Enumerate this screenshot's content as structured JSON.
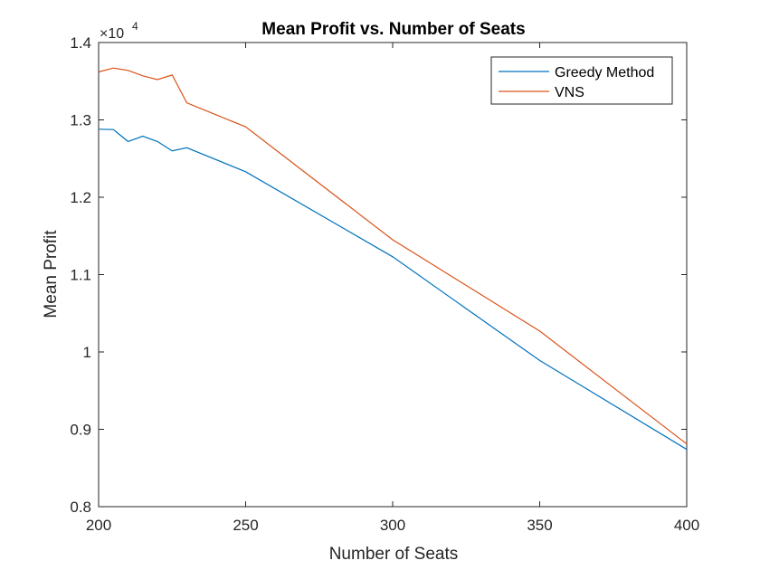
{
  "chart_data": {
    "type": "line",
    "title": "Mean Profit vs. Number of Seats",
    "xlabel": "Number of Seats",
    "ylabel": "Mean Profit",
    "xlim": [
      200,
      400
    ],
    "ylim": [
      8000,
      14000
    ],
    "x_ticks": [
      200,
      250,
      300,
      350,
      400
    ],
    "x_tick_labels": [
      "200",
      "250",
      "300",
      "350",
      "400"
    ],
    "y_ticks": [
      8000,
      9000,
      10000,
      11000,
      12000,
      13000,
      14000
    ],
    "y_tick_labels": [
      "0.8",
      "0.9",
      "1",
      "1.1",
      "1.2",
      "1.3",
      "1.4"
    ],
    "y_multiplier_base": "×10",
    "y_multiplier_exponent": "4",
    "grid": false,
    "legend_position": "top-right",
    "series": [
      {
        "name": "Greedy Method",
        "color": "#0072BD",
        "x": [
          200,
          205,
          210,
          215,
          220,
          225,
          230,
          250,
          300,
          350,
          400
        ],
        "y": [
          12880,
          12875,
          12720,
          12790,
          12720,
          12600,
          12640,
          12330,
          11230,
          9890,
          8740
        ]
      },
      {
        "name": "VNS",
        "color": "#D95319",
        "x": [
          200,
          205,
          210,
          215,
          220,
          225,
          230,
          250,
          300,
          350,
          400
        ],
        "y": [
          13620,
          13670,
          13640,
          13570,
          13520,
          13580,
          13220,
          12910,
          11450,
          10270,
          8810
        ]
      }
    ]
  }
}
